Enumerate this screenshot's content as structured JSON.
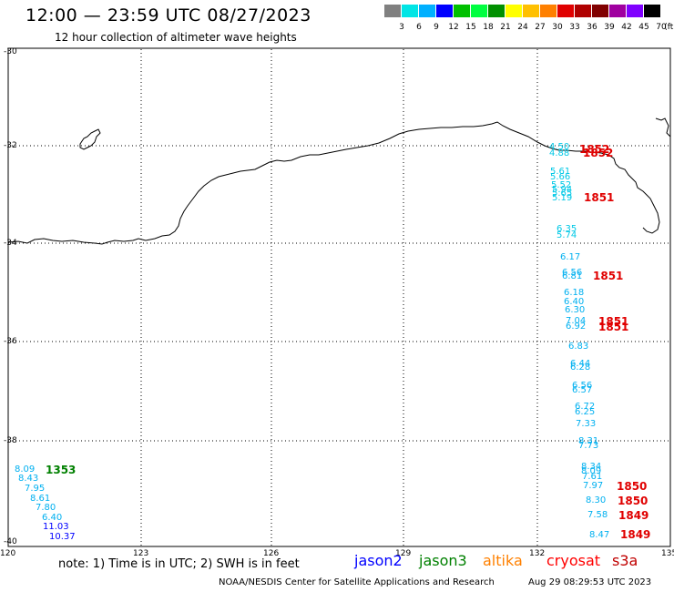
{
  "title": "12:00 — 23:59 UTC 08/27/2023",
  "subtitle": "12 hour collection of altimeter wave heights",
  "legend": {
    "colors": [
      "#808080",
      "#00e5e5",
      "#00b0ff",
      "#0000ff",
      "#00c000",
      "#00ff40",
      "#009000",
      "#ffff00",
      "#ffc000",
      "#ff8000",
      "#e00000",
      "#b00000",
      "#800000",
      "#a000a0",
      "#8000ff",
      "#000000"
    ],
    "labels": [
      "3",
      "6",
      "9",
      "12",
      "15",
      "18",
      "21",
      "24",
      "27",
      "30",
      "33",
      "36",
      "39",
      "42",
      "45",
      "70",
      "(ft)"
    ]
  },
  "axes": {
    "lat_labels": [
      "-30",
      "-32",
      "-34",
      "-36",
      "-38",
      "-40"
    ],
    "lon_labels": [
      "120",
      "123",
      "126",
      "129",
      "132",
      "135"
    ]
  },
  "note": "note: 1) Time is in UTC; 2) SWH is in feet",
  "satellites": [
    {
      "name": "jason2",
      "color": "#0000ff"
    },
    {
      "name": "jason3",
      "color": "#008000"
    },
    {
      "name": "altika",
      "color": "#ff8000"
    },
    {
      "name": "cryosat",
      "color": "#ff0000"
    },
    {
      "name": "s3a",
      "color": "#c00000"
    }
  ],
  "footer_left": "NOAA/NESDIS Center for Satellite Applications and Research",
  "footer_right": "Aug 29 08:29:53 UTC 2023",
  "wave_heights": [
    {
      "v": "4.50",
      "c": "#00c8e6"
    },
    {
      "v": "4.88",
      "c": "#00c8e6"
    },
    {
      "v": "5.61",
      "c": "#00c8e6"
    },
    {
      "v": "5.66",
      "c": "#00c8e6"
    },
    {
      "v": "5.52",
      "c": "#00c8e6"
    },
    {
      "v": "5.94",
      "c": "#00c8e6"
    },
    {
      "v": "5.65",
      "c": "#00c8e6"
    },
    {
      "v": "5.19",
      "c": "#00c8e6"
    },
    {
      "v": "6.35",
      "c": "#00c8e6"
    },
    {
      "v": "5.74",
      "c": "#00c8e6"
    },
    {
      "v": "6.17",
      "c": "#00b0f0"
    },
    {
      "v": "6.56",
      "c": "#00b0f0"
    },
    {
      "v": "6.81",
      "c": "#00b0f0"
    },
    {
      "v": "6.18",
      "c": "#00b0f0"
    },
    {
      "v": "6.40",
      "c": "#00b0f0"
    },
    {
      "v": "6.30",
      "c": "#00b0f0"
    },
    {
      "v": "7.04",
      "c": "#00b0f0"
    },
    {
      "v": "6.92",
      "c": "#00b0f0"
    },
    {
      "v": "6.83",
      "c": "#00b0f0"
    },
    {
      "v": "6.44",
      "c": "#00b0f0"
    },
    {
      "v": "6.28",
      "c": "#00b0f0"
    },
    {
      "v": "6.56",
      "c": "#00b0f0"
    },
    {
      "v": "6.57",
      "c": "#00b0f0"
    },
    {
      "v": "6.72",
      "c": "#00b0f0"
    },
    {
      "v": "6.25",
      "c": "#00b0f0"
    },
    {
      "v": "7.33",
      "c": "#00b0f0"
    },
    {
      "v": "8.31",
      "c": "#00b0f0"
    },
    {
      "v": "7.73",
      "c": "#00b0f0"
    },
    {
      "v": "8.34",
      "c": "#00b0f0"
    },
    {
      "v": "8.09",
      "c": "#00b0f0"
    },
    {
      "v": "7.61",
      "c": "#00b0f0"
    },
    {
      "v": "7.97",
      "c": "#00b0f0"
    },
    {
      "v": "8.30",
      "c": "#00b0f0"
    },
    {
      "v": "7.58",
      "c": "#00b0f0"
    },
    {
      "v": "8.47",
      "c": "#00b0f0"
    },
    {
      "v": "8.09",
      "c": "#00b0f0"
    },
    {
      "v": "8.43",
      "c": "#00b0f0"
    },
    {
      "v": "7.95",
      "c": "#00b0f0"
    },
    {
      "v": "8.61",
      "c": "#00b0f0"
    },
    {
      "v": "7.80",
      "c": "#00b0f0"
    },
    {
      "v": "6.40",
      "c": "#00b0f0"
    },
    {
      "v": "11.03",
      "c": "#0000ff"
    },
    {
      "v": "10.37",
      "c": "#0000ff"
    }
  ],
  "pass_times": [
    {
      "v": "1852",
      "c": "#e00000"
    },
    {
      "v": "1852",
      "c": "#e00000"
    },
    {
      "v": "1851",
      "c": "#e00000"
    },
    {
      "v": "1851",
      "c": "#e00000"
    },
    {
      "v": "1851",
      "c": "#e00000"
    },
    {
      "v": "1851",
      "c": "#e00000"
    },
    {
      "v": "1850",
      "c": "#e00000"
    },
    {
      "v": "1850",
      "c": "#e00000"
    },
    {
      "v": "1849",
      "c": "#e00000"
    },
    {
      "v": "1849",
      "c": "#e00000"
    },
    {
      "v": "1353",
      "c": "#008000"
    }
  ]
}
